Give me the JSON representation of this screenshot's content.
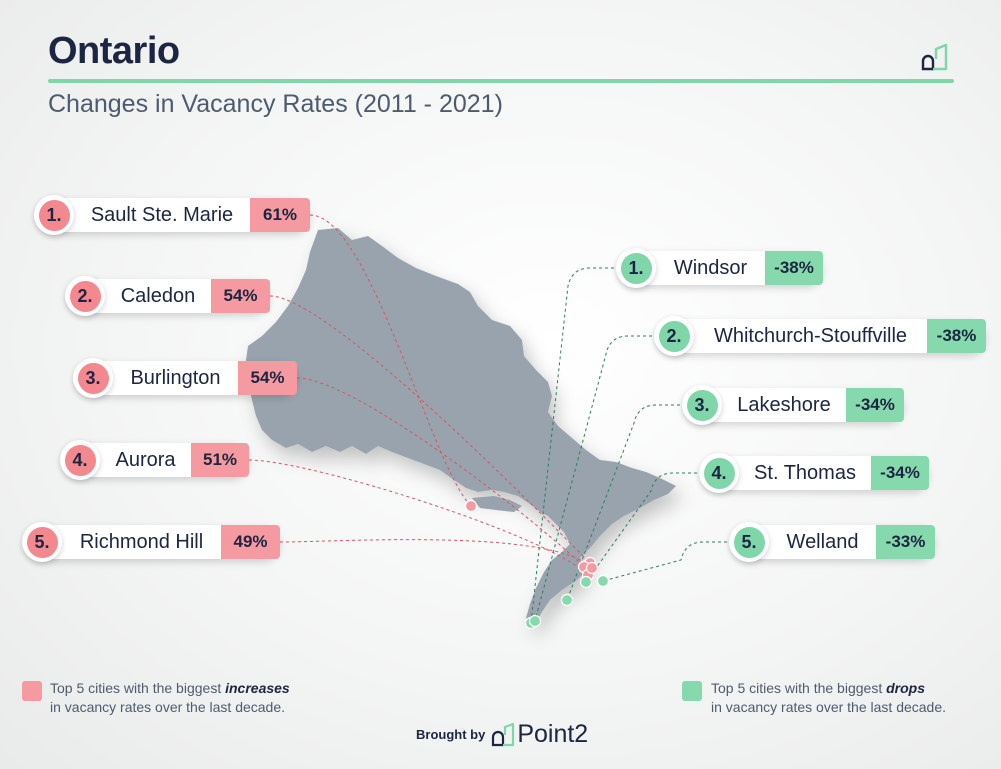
{
  "header": {
    "title": "Ontario",
    "subtitle": "Changes in Vacancy Rates (2011 - 2021)"
  },
  "colors": {
    "increase": "#f49aa0",
    "increase_badge": "#f3888e",
    "decrease": "#86d9ad",
    "decrease_badge": "#7fd6a9",
    "land": "#98a3ad"
  },
  "increases": [
    {
      "rank": "1.",
      "city": "Sault Ste. Marie",
      "value": "61%"
    },
    {
      "rank": "2.",
      "city": "Caledon",
      "value": "54%"
    },
    {
      "rank": "3.",
      "city": "Burlington",
      "value": "54%"
    },
    {
      "rank": "4.",
      "city": "Aurora",
      "value": "51%"
    },
    {
      "rank": "5.",
      "city": "Richmond Hill",
      "value": "49%"
    }
  ],
  "decreases": [
    {
      "rank": "1.",
      "city": "Windsor",
      "value": "-38%"
    },
    {
      "rank": "2.",
      "city": "Whitchurch-Stouffville",
      "value": "-38%"
    },
    {
      "rank": "3.",
      "city": "Lakeshore",
      "value": "-34%"
    },
    {
      "rank": "4.",
      "city": "St. Thomas",
      "value": "-34%"
    },
    {
      "rank": "5.",
      "city": "Welland",
      "value": "-33%"
    }
  ],
  "legend": {
    "increase_pre": "Top 5 cities with the biggest ",
    "increase_em": "increases",
    "increase_line2": "in vacancy rates over the last decade.",
    "decrease_pre": "Top 5 cities with the biggest ",
    "decrease_em": "drops",
    "decrease_line2": "in vacancy rates over the last decade."
  },
  "footer": {
    "brought_by": "Brought by",
    "brand": "Point2"
  },
  "icons": {
    "top_logo": "point2-logo-icon",
    "footer_logo": "point2-logo-icon"
  }
}
